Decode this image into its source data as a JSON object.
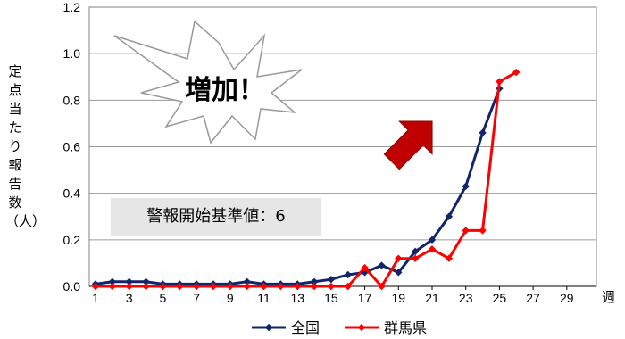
{
  "chart_data": {
    "type": "line",
    "x": [
      1,
      2,
      3,
      4,
      5,
      6,
      7,
      8,
      9,
      10,
      11,
      12,
      13,
      14,
      15,
      16,
      17,
      18,
      19,
      20,
      21,
      22,
      23,
      24,
      25,
      26
    ],
    "xticks": [
      "1",
      "3",
      "5",
      "7",
      "9",
      "11",
      "13",
      "15",
      "17",
      "19",
      "21",
      "23",
      "25",
      "27",
      "29"
    ],
    "xlim": [
      1,
      30
    ],
    "ylim": [
      0,
      1.2
    ],
    "yticks": [
      "0.0",
      "0.2",
      "0.4",
      "0.6",
      "0.8",
      "1.0",
      "1.2"
    ],
    "ylabel": "定点当たり報告数（人）",
    "xunit": "週",
    "grid": true,
    "legend_position": "bottom",
    "series": [
      {
        "name": "全国",
        "color": "#12256b",
        "marker": "diamond",
        "values": [
          0.01,
          0.02,
          0.02,
          0.02,
          0.01,
          0.01,
          0.01,
          0.01,
          0.01,
          0.02,
          0.01,
          0.01,
          0.01,
          0.02,
          0.03,
          0.05,
          0.06,
          0.09,
          0.06,
          0.15,
          0.2,
          0.3,
          0.43,
          0.66,
          0.85,
          null
        ]
      },
      {
        "name": "群馬県",
        "color": "#ff0000",
        "marker": "diamond",
        "values": [
          0,
          0,
          0,
          0,
          0,
          0,
          0,
          0,
          0,
          0,
          0,
          0,
          0,
          0,
          0,
          0,
          0.08,
          0,
          0.12,
          0.12,
          0.16,
          0.12,
          0.24,
          0.24,
          0.88,
          0.92
        ]
      }
    ]
  },
  "annotations": {
    "threshold_text": "警報開始基準値：6",
    "burst_text": "増加！",
    "arrow_color": "#c00000"
  }
}
